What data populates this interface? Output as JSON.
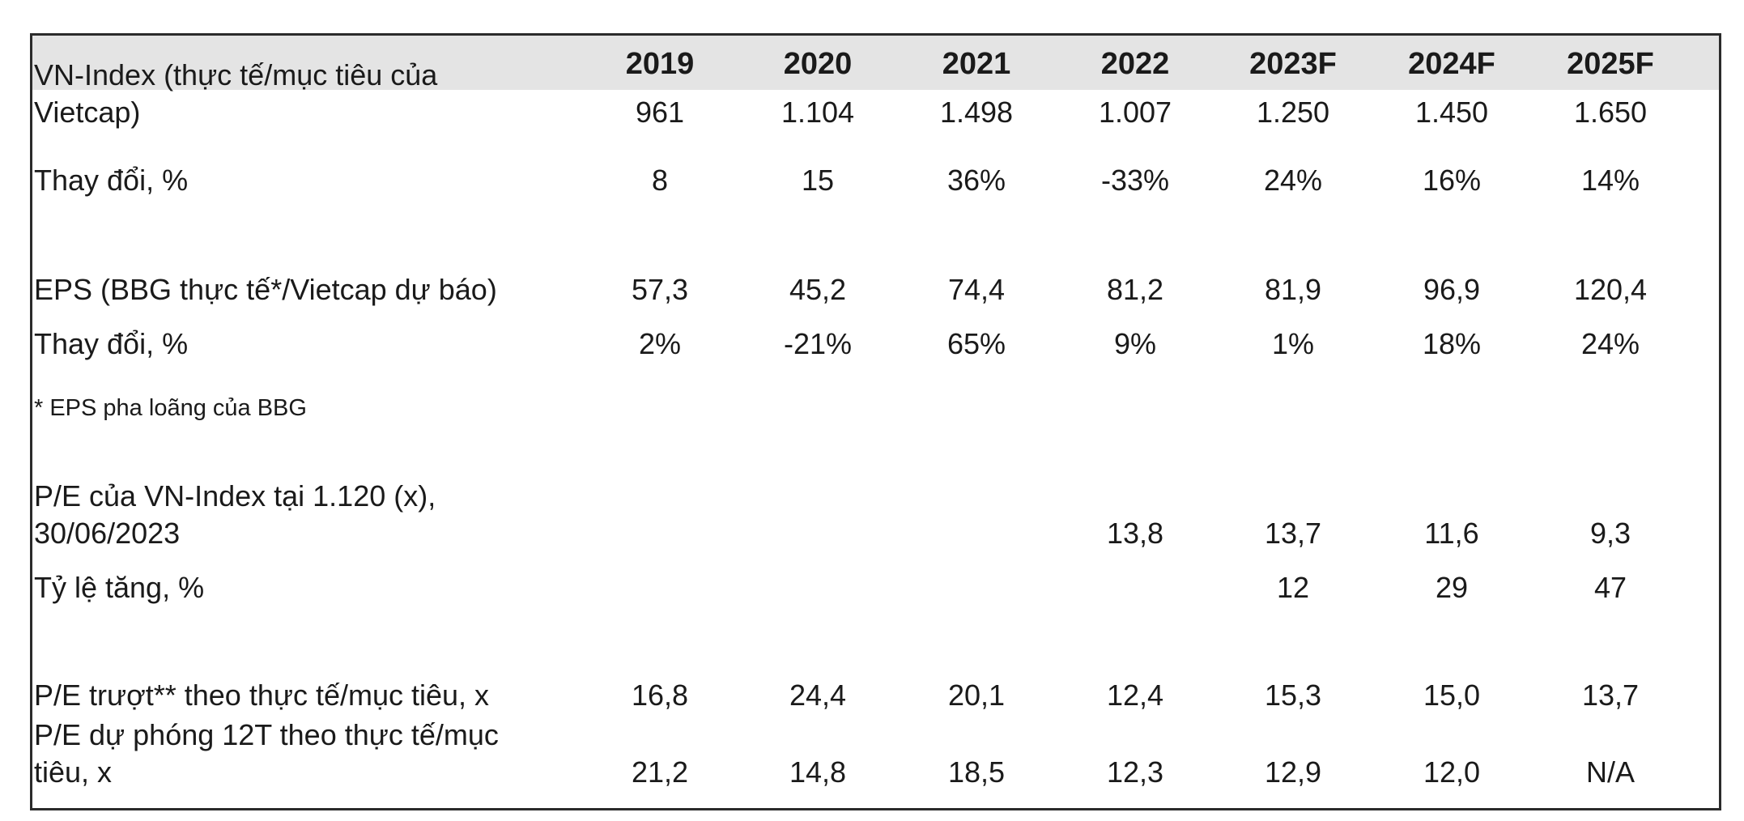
{
  "table": {
    "years": [
      "2019",
      "2020",
      "2021",
      "2022",
      "2023F",
      "2024F",
      "2025F"
    ],
    "rows": [
      {
        "label_lines": [
          "VN-Index (thực tế/mục tiêu của",
          "Vietcap)"
        ],
        "values": [
          "961",
          "1.104",
          "1.498",
          "1.007",
          "1.250",
          "1.450",
          "1.650"
        ]
      },
      {
        "label_lines": [
          "Thay đổi, %"
        ],
        "values": [
          "8",
          "15",
          "36%",
          "-33%",
          "24%",
          "16%",
          "14%"
        ]
      },
      {
        "label_lines": [
          "EPS (BBG thực tế*/Vietcap dự báo)"
        ],
        "values": [
          "57,3",
          "45,2",
          "74,4",
          "81,2",
          "81,9",
          "96,9",
          "120,4"
        ]
      },
      {
        "label_lines": [
          "Thay đổi, %"
        ],
        "values": [
          "2%",
          "-21%",
          "65%",
          "9%",
          "1%",
          "18%",
          "24%"
        ]
      },
      {
        "label_lines": [
          "* EPS pha loãng của BBG"
        ],
        "values": [
          "",
          "",
          "",
          "",
          "",
          "",
          ""
        ]
      },
      {
        "label_lines": [
          "P/E của VN-Index tại 1.120 (x),",
          "30/06/2023"
        ],
        "values": [
          "",
          "",
          "",
          "13,8",
          "13,7",
          "11,6",
          "9,3"
        ]
      },
      {
        "label_lines": [
          "Tỷ lệ tăng, %"
        ],
        "values": [
          "",
          "",
          "",
          "",
          "12",
          "29",
          "47"
        ]
      },
      {
        "label_lines": [
          "P/E trượt** theo thực tế/mục tiêu, x"
        ],
        "values": [
          "16,8",
          "24,4",
          "20,1",
          "12,4",
          "15,3",
          "15,0",
          "13,7"
        ]
      },
      {
        "label_lines": [
          "P/E dự phóng 12T theo thực tế/mục",
          "tiêu, x"
        ],
        "values": [
          "21,2",
          "14,8",
          "18,5",
          "12,3",
          "12,9",
          "12,0",
          "N/A"
        ]
      }
    ]
  }
}
